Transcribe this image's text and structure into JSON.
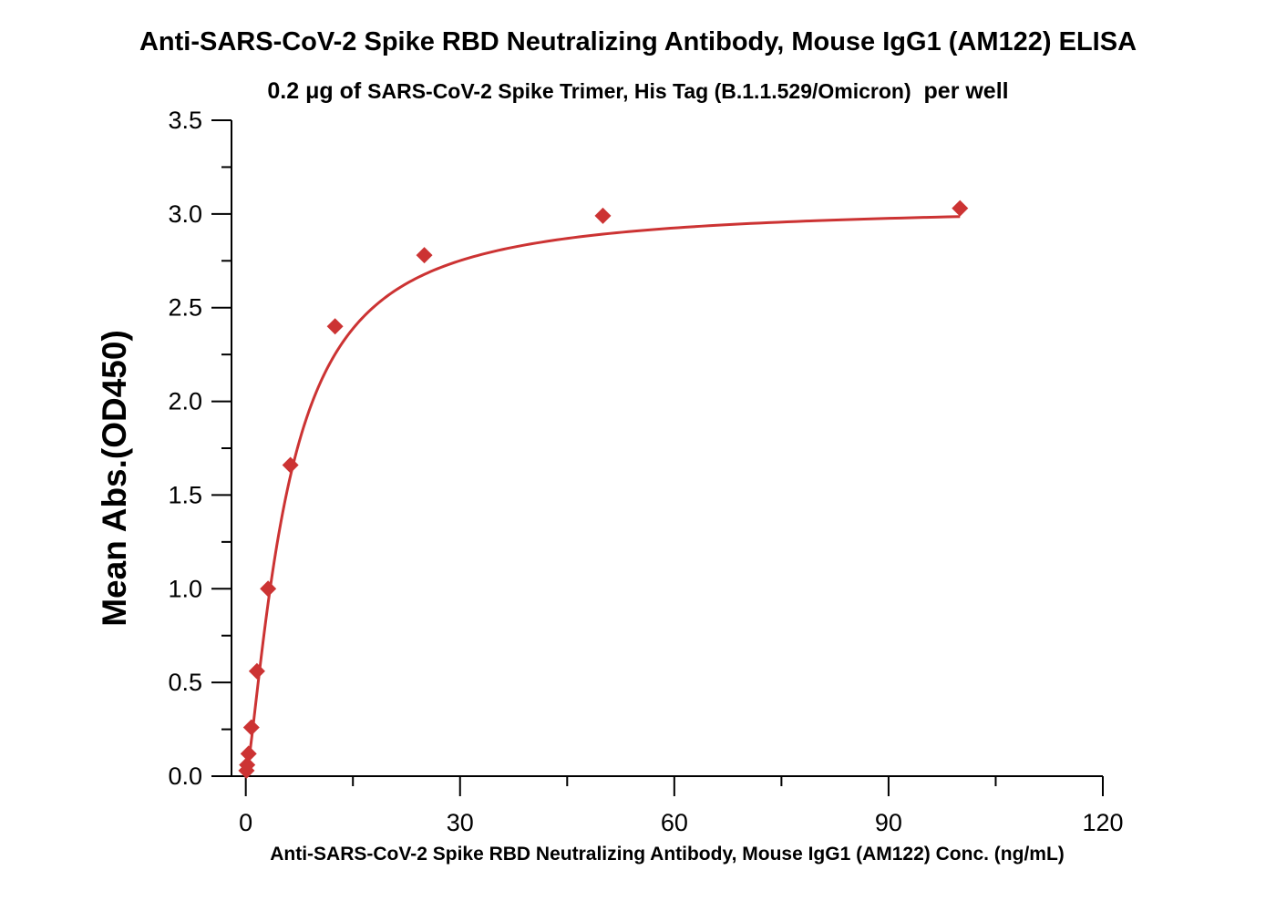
{
  "chart_data": {
    "type": "scatter",
    "title": "Anti-SARS-CoV-2 Spike RBD Neutralizing Antibody, Mouse IgG1 (AM122) ELISA",
    "subtitle": {
      "prefix": "0.2 μg of ",
      "antigen": "SARS-CoV-2 Spike Trimer, His Tag (B.1.1.529/Omicron)",
      "suffix": "  per well"
    },
    "xlabel": "Anti-SARS-CoV-2 Spike RBD Neutralizing Antibody, Mouse IgG1 (AM122) Conc. (ng/mL)",
    "ylabel": "Mean Abs.(OD450)",
    "xlim": [
      -2,
      120
    ],
    "ylim": [
      0,
      3.5
    ],
    "xticks": [
      0,
      30,
      60,
      90,
      120
    ],
    "xtick_labels": [
      "0",
      "30",
      "60",
      "90",
      "120"
    ],
    "yticks": [
      0,
      0.5,
      1.0,
      1.5,
      2.0,
      2.5,
      3.0,
      3.5
    ],
    "ytick_labels": [
      "0.0",
      "0.5",
      "1.0",
      "1.5",
      "2.0",
      "2.5",
      "3.0",
      "3.5"
    ],
    "color": "#cc3333",
    "marker": "diamond",
    "fit": "4-parameter logistic curve",
    "series": [
      {
        "x": [
          0.098,
          0.195,
          0.39,
          0.78,
          1.56,
          3.125,
          6.25,
          12.5,
          25,
          50,
          100
        ],
        "y": [
          0.03,
          0.06,
          0.12,
          0.26,
          0.56,
          1.0,
          1.66,
          2.4,
          2.78,
          2.99,
          3.03
        ]
      }
    ]
  }
}
